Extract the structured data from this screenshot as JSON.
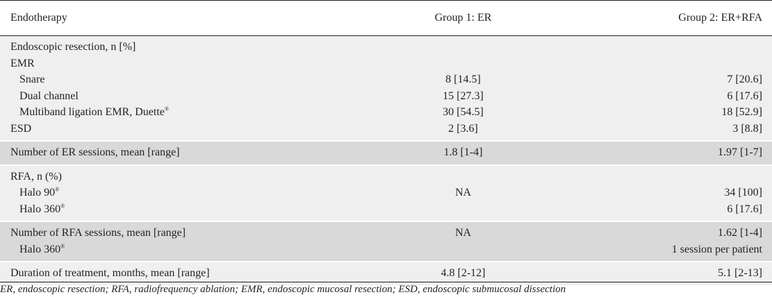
{
  "header": {
    "col1": "Endotherapy",
    "col2": "Group 1: ER",
    "col3": "Group 2: ER+RFA"
  },
  "rows": [
    {
      "label": "Endoscopic resection, n [%]",
      "g1": "",
      "g2": "",
      "indent": false,
      "shade": "light",
      "group": 1
    },
    {
      "label": "EMR",
      "g1": "",
      "g2": "",
      "indent": false,
      "shade": "light",
      "group": 1
    },
    {
      "label": "Snare",
      "g1": "8 [14.5]",
      "g2": "7 [20.6]",
      "indent": true,
      "shade": "light",
      "group": 1
    },
    {
      "label": "Dual channel",
      "g1": "15 [27.3]",
      "g2": "6 [17.6]",
      "indent": true,
      "shade": "light",
      "group": 1
    },
    {
      "label": "Multiband ligation EMR, Duette",
      "sup": "®",
      "g1": "30 [54.5]",
      "g2": "18 [52.9]",
      "indent": true,
      "shade": "light",
      "group": 1
    },
    {
      "label": "ESD",
      "g1": "2 [3.6]",
      "g2": "3 [8.8]",
      "indent": false,
      "shade": "light",
      "group": 1
    },
    {
      "label": "Number of ER sessions, mean [range]",
      "g1": "1.8 [1-4]",
      "g2": "1.97 [1-7]",
      "indent": false,
      "shade": "dark",
      "group": 2
    },
    {
      "label": "RFA, n (%)",
      "g1": "",
      "g2": "",
      "indent": false,
      "shade": "light",
      "group": 3
    },
    {
      "label": "Halo 90",
      "sup": "®",
      "g1": "NA",
      "g2": "34 [100]",
      "indent": true,
      "shade": "light",
      "group": 3
    },
    {
      "label": "Halo 360",
      "sup": "®",
      "g1": "",
      "g2": "6 [17.6]",
      "indent": true,
      "shade": "light",
      "group": 3
    },
    {
      "label": "Number of RFA sessions, mean [range]",
      "g1": "NA",
      "g2": "1.62 [1-4]",
      "indent": false,
      "shade": "dark",
      "group": 4
    },
    {
      "label": "Halo 360",
      "sup": "®",
      "g1": "",
      "g2": "1 session per patient",
      "indent": true,
      "shade": "dark",
      "group": 4
    },
    {
      "label": "Duration of treatment, months, mean [range]",
      "g1": "4.8 [2-12]",
      "g2": "5.1 [2-13]",
      "indent": false,
      "shade": "light",
      "group": 5
    }
  ],
  "footnote": "ER, endoscopic resection; RFA, radiofrequency ablation; EMR, endoscopic mucosal resection; ESD, endoscopic submucosal dissection",
  "colors": {
    "light": "#efefef",
    "dark": "#d9d9d9",
    "text": "#231f20"
  }
}
